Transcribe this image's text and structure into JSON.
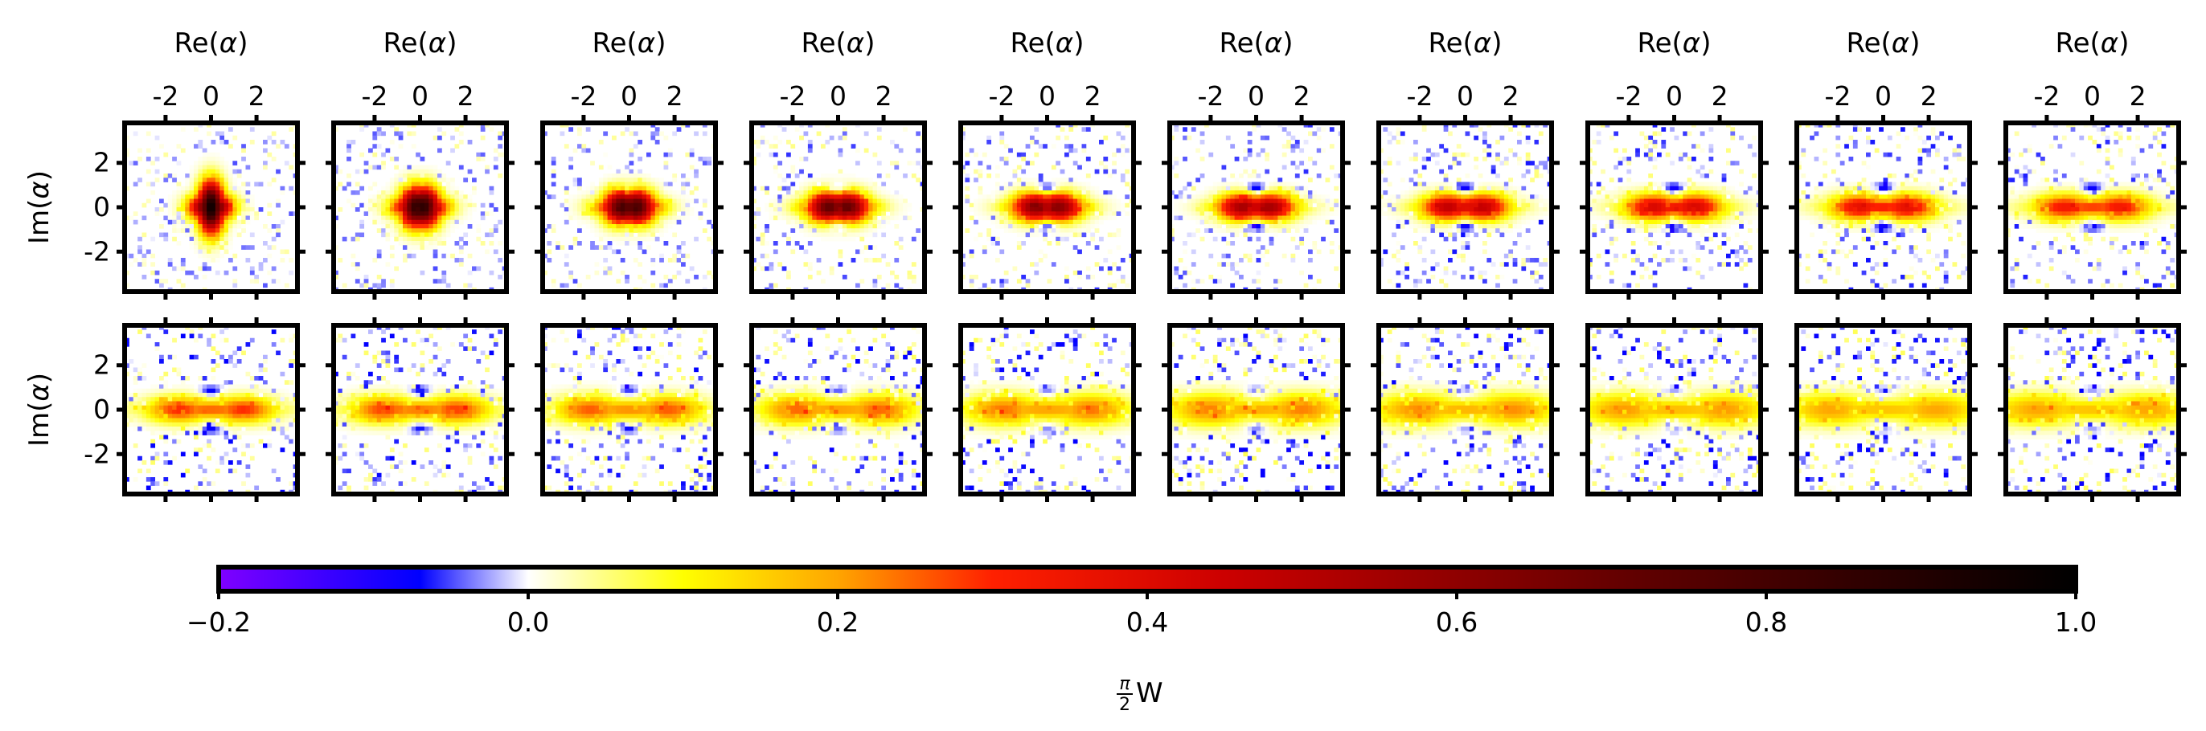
{
  "chart_data": {
    "type": "heatmap",
    "description_grid": {
      "rows": 2,
      "cols": 10
    },
    "x_axis": {
      "label_prefix": "Re(",
      "label_symbol": "α",
      "label_suffix": ")",
      "ticks": [
        -2,
        0,
        2
      ],
      "tick_labels": [
        "-2",
        "0",
        "2"
      ],
      "range": [
        -3.8,
        3.8
      ]
    },
    "y_axis": {
      "label_prefix": "Im(",
      "label_symbol": "α",
      "label_suffix": ")",
      "ticks": [
        2,
        0,
        -2
      ],
      "tick_labels": [
        "2",
        "0",
        "-2"
      ],
      "range": [
        -3.8,
        3.8
      ]
    },
    "colorbar": {
      "label_num": "π",
      "label_den": "2",
      "label_var": "W",
      "range": [
        -0.2,
        1.0
      ],
      "ticks": [
        -0.2,
        0.0,
        0.2,
        0.4,
        0.6,
        0.8,
        1.0
      ],
      "tick_labels": [
        "−0.2",
        "0.0",
        "0.2",
        "0.4",
        "0.6",
        "0.8",
        "1.0"
      ],
      "orientation": "horizontal",
      "placement": "bottom",
      "colormap": [
        {
          "v": -0.2,
          "color": "#8000ff"
        },
        {
          "v": -0.07,
          "color": "#0000ff"
        },
        {
          "v": 0.0,
          "color": "#ffffff"
        },
        {
          "v": 0.1,
          "color": "#ffff00"
        },
        {
          "v": 0.2,
          "color": "#ffa500"
        },
        {
          "v": 0.3,
          "color": "#ff2000"
        },
        {
          "v": 0.45,
          "color": "#cc0000"
        },
        {
          "v": 0.7,
          "color": "#660000"
        },
        {
          "v": 1.0,
          "color": "#000000"
        }
      ]
    },
    "panels": [
      {
        "peak": 0.98,
        "sep": 0.0,
        "sx": 0.75,
        "sy": 0.75,
        "neg": 0.0,
        "noise": 0.03
      },
      {
        "peak": 0.88,
        "sep": 0.15,
        "sx": 0.95,
        "sy": 0.6,
        "neg": 0.03,
        "noise": 0.03
      },
      {
        "peak": 0.8,
        "sep": 0.3,
        "sx": 1.1,
        "sy": 0.5,
        "neg": 0.06,
        "noise": 0.03
      },
      {
        "peak": 0.72,
        "sep": 0.4,
        "sx": 1.25,
        "sy": 0.45,
        "neg": 0.09,
        "noise": 0.035
      },
      {
        "peak": 0.62,
        "sep": 0.5,
        "sx": 1.4,
        "sy": 0.42,
        "neg": 0.11,
        "noise": 0.035
      },
      {
        "peak": 0.55,
        "sep": 0.6,
        "sx": 1.5,
        "sy": 0.4,
        "neg": 0.12,
        "noise": 0.035
      },
      {
        "peak": 0.48,
        "sep": 0.75,
        "sx": 1.6,
        "sy": 0.4,
        "neg": 0.12,
        "noise": 0.04
      },
      {
        "peak": 0.42,
        "sep": 0.9,
        "sx": 1.7,
        "sy": 0.4,
        "neg": 0.12,
        "noise": 0.04
      },
      {
        "peak": 0.38,
        "sep": 1.05,
        "sx": 1.8,
        "sy": 0.4,
        "neg": 0.11,
        "noise": 0.04
      },
      {
        "peak": 0.34,
        "sep": 1.2,
        "sx": 1.9,
        "sy": 0.4,
        "neg": 0.1,
        "noise": 0.04
      },
      {
        "peak": 0.3,
        "sep": 1.4,
        "sx": 2.0,
        "sy": 0.4,
        "neg": 0.09,
        "noise": 0.045
      },
      {
        "peak": 0.28,
        "sep": 1.6,
        "sx": 2.1,
        "sy": 0.42,
        "neg": 0.08,
        "noise": 0.045
      },
      {
        "peak": 0.26,
        "sep": 1.7,
        "sx": 2.2,
        "sy": 0.44,
        "neg": 0.07,
        "noise": 0.045
      },
      {
        "peak": 0.25,
        "sep": 1.8,
        "sx": 2.3,
        "sy": 0.46,
        "neg": 0.06,
        "noise": 0.05
      },
      {
        "peak": 0.24,
        "sep": 1.9,
        "sx": 2.4,
        "sy": 0.48,
        "neg": 0.05,
        "noise": 0.05
      },
      {
        "peak": 0.23,
        "sep": 2.0,
        "sx": 2.5,
        "sy": 0.5,
        "neg": 0.05,
        "noise": 0.05
      },
      {
        "peak": 0.22,
        "sep": 2.1,
        "sx": 2.6,
        "sy": 0.5,
        "neg": 0.04,
        "noise": 0.05
      },
      {
        "peak": 0.21,
        "sep": 2.2,
        "sx": 2.7,
        "sy": 0.5,
        "neg": 0.04,
        "noise": 0.05
      },
      {
        "peak": 0.2,
        "sep": 2.3,
        "sx": 2.8,
        "sy": 0.5,
        "neg": 0.04,
        "noise": 0.05
      },
      {
        "peak": 0.2,
        "sep": 2.4,
        "sx": 2.9,
        "sy": 0.5,
        "neg": 0.04,
        "noise": 0.05
      }
    ]
  }
}
